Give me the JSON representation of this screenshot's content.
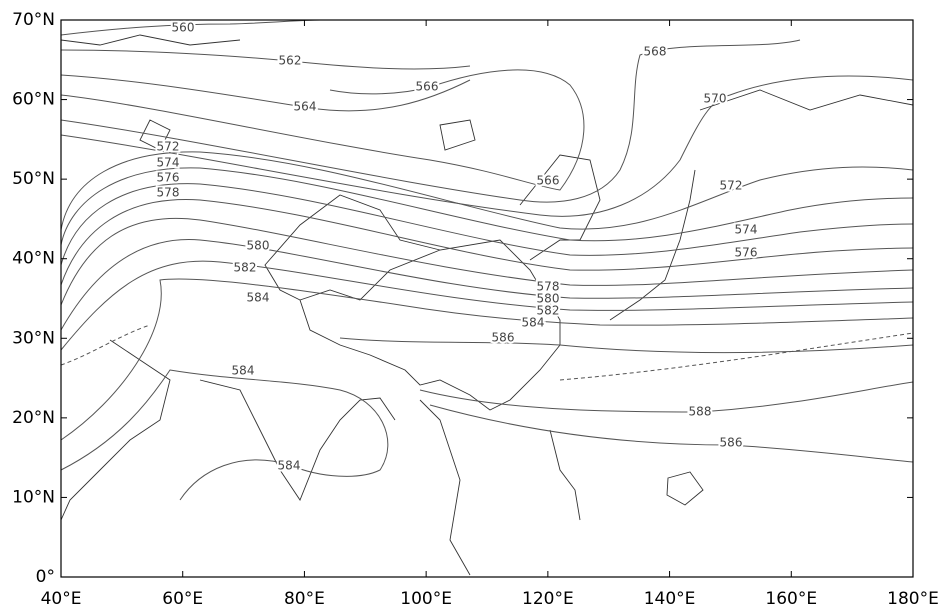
{
  "map": {
    "lat_labels": [
      "70°N",
      "60°N",
      "50°N",
      "40°N",
      "30°N",
      "20°N",
      "10°N",
      "0°"
    ],
    "lon_labels": [
      "40°E",
      "60°E",
      "80°E",
      "100°E",
      "120°E",
      "140°E",
      "160°E",
      "180°E"
    ],
    "contour_labels": [
      560,
      562,
      564,
      566,
      568,
      570,
      566,
      572,
      574,
      576,
      578,
      580,
      582,
      584,
      572,
      574,
      576,
      578,
      580,
      582,
      584,
      586,
      584,
      588,
      586,
      584
    ]
  }
}
